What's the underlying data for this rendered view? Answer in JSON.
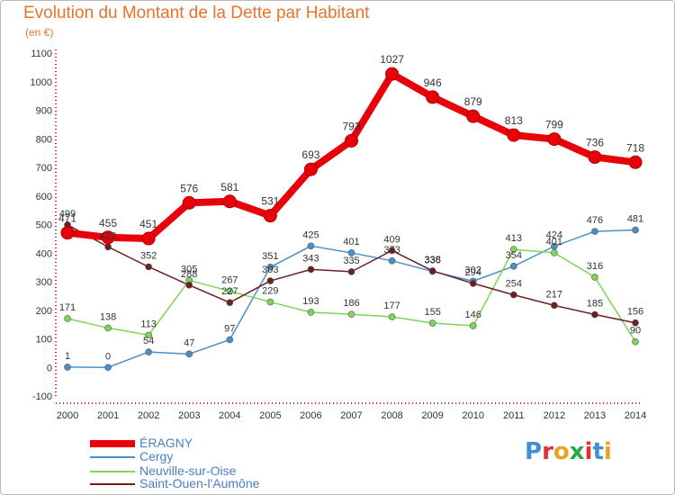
{
  "title": "Evolution du Montant de la Dette par Habitant",
  "unit": "(en €)",
  "logo": "Proxiti",
  "chart_data": {
    "type": "line",
    "x": [
      "2000",
      "2001",
      "2002",
      "2003",
      "2004",
      "2005",
      "2006",
      "2007",
      "2008",
      "2009",
      "2010",
      "2011",
      "2012",
      "2013",
      "2014"
    ],
    "ylim": [
      -100,
      1100
    ],
    "yticks": [
      -100,
      0,
      100,
      200,
      300,
      400,
      500,
      600,
      700,
      800,
      900,
      1000,
      1100
    ],
    "grid": false,
    "legend_position": "bottom-left",
    "series": [
      {
        "name": "ÉRAGNY",
        "color": "#e8000b",
        "values": [
          471,
          455,
          451,
          576,
          581,
          531,
          693,
          793,
          1027,
          946,
          879,
          813,
          799,
          736,
          718
        ]
      },
      {
        "name": "Cergy",
        "color": "#4a90c8",
        "values": [
          1,
          0,
          54,
          47,
          97,
          351,
          425,
          401,
          373,
          336,
          302,
          354,
          424,
          476,
          481
        ]
      },
      {
        "name": "Neuville-sur-Oise",
        "color": "#7fd45a",
        "values": [
          171,
          138,
          113,
          305,
          267,
          229,
          193,
          186,
          177,
          155,
          146,
          413,
          401,
          316,
          90
        ]
      },
      {
        "name": "Saint-Ouen-l'Aumône",
        "color": "#6b1f1f",
        "values": [
          499,
          422,
          352,
          288,
          227,
          303,
          343,
          335,
          409,
          338,
          294,
          254,
          217,
          185,
          156
        ]
      }
    ]
  }
}
